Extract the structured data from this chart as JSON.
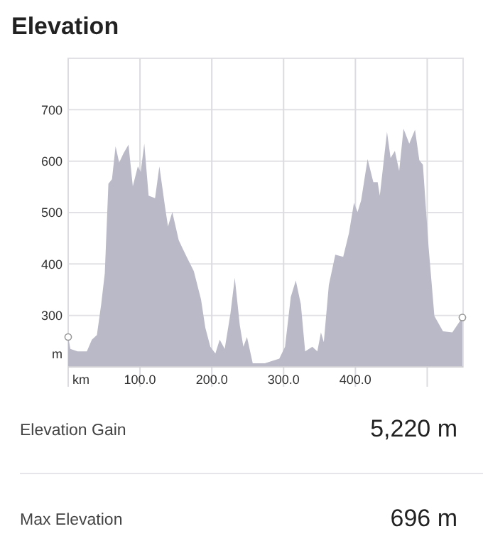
{
  "chart_data": [
    {
      "type": "area",
      "title": "Elevation",
      "xlabel": "km",
      "ylabel": "m",
      "color": "#bab9c7",
      "x": [
        0,
        3,
        13,
        26,
        33,
        40,
        46,
        51,
        56,
        61,
        66,
        71,
        77,
        84,
        90,
        97,
        101,
        106,
        112,
        121,
        127,
        135,
        139,
        145,
        154,
        165,
        175,
        185,
        191,
        198,
        205,
        211,
        218,
        226,
        232,
        239,
        244,
        249,
        257,
        274,
        294,
        302,
        310,
        317,
        324,
        330,
        340,
        347,
        352,
        356,
        363,
        372,
        383,
        391,
        398,
        403,
        408,
        417,
        425,
        431,
        434,
        444,
        449,
        455,
        461,
        467,
        475,
        483,
        489,
        494,
        502,
        510,
        522,
        535,
        549
      ],
      "values": [
        258,
        235,
        230,
        230,
        253,
        262,
        322,
        382,
        556,
        565,
        629,
        597,
        615,
        632,
        551,
        590,
        579,
        634,
        533,
        528,
        590,
        510,
        473,
        501,
        446,
        414,
        386,
        331,
        276,
        239,
        226,
        253,
        235,
        304,
        373,
        281,
        239,
        258,
        207,
        207,
        216,
        239,
        336,
        368,
        322,
        230,
        239,
        230,
        267,
        248,
        359,
        418,
        414,
        460,
        519,
        501,
        524,
        604,
        559,
        559,
        533,
        657,
        606,
        620,
        581,
        663,
        634,
        661,
        602,
        593,
        432,
        299,
        269,
        267,
        296
      ],
      "xlim": [
        0,
        550
      ],
      "ylim": [
        200,
        800
      ],
      "xticks": [
        {
          "value": 100,
          "label": "100.0"
        },
        {
          "value": 200,
          "label": "200.0"
        },
        {
          "value": 300,
          "label": "300.0"
        },
        {
          "value": 400,
          "label": "400.0"
        },
        {
          "value": 500,
          "label": null
        }
      ],
      "yticks": [
        300,
        400,
        500,
        600,
        700
      ],
      "grid": true
    },
    {
      "type": "other",
      "annotations": [
        "Elevation Gain",
        "5,220 m",
        "Max Elevation",
        "696 m"
      ]
    }
  ]
}
